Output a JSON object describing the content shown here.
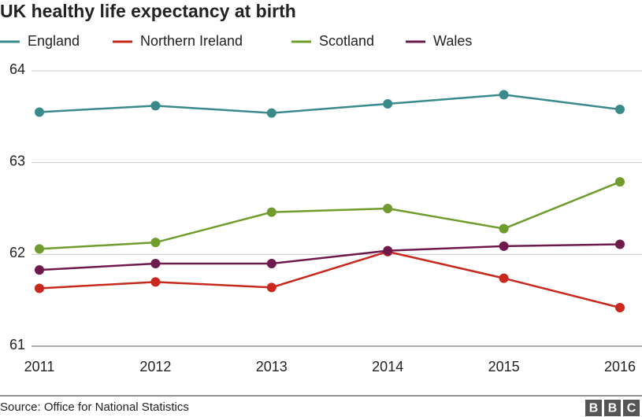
{
  "chart_data": {
    "type": "line",
    "title": "UK healthy life expectancy at birth",
    "categories": [
      "2011",
      "2012",
      "2013",
      "2014",
      "2015",
      "2016"
    ],
    "series": [
      {
        "name": "England",
        "color": "#3a8a8c",
        "values": [
          63.55,
          63.62,
          63.54,
          63.64,
          63.74,
          63.58
        ]
      },
      {
        "name": "Northern Ireland",
        "color": "#c8281d",
        "values": [
          61.63,
          61.7,
          61.64,
          62.03,
          61.74,
          61.42
        ]
      },
      {
        "name": "Scotland",
        "color": "#6f9c2c",
        "values": [
          62.06,
          62.13,
          62.46,
          62.5,
          62.28,
          62.79
        ]
      },
      {
        "name": "Wales",
        "color": "#6e1a4c",
        "values": [
          61.83,
          61.9,
          61.9,
          62.04,
          62.09,
          62.11
        ]
      }
    ],
    "ylim": [
      61,
      64
    ],
    "yticks": [
      61,
      62,
      63,
      64
    ],
    "grid": true,
    "source": "Source: Office for National Statistics",
    "logo": [
      "B",
      "B",
      "C"
    ]
  }
}
